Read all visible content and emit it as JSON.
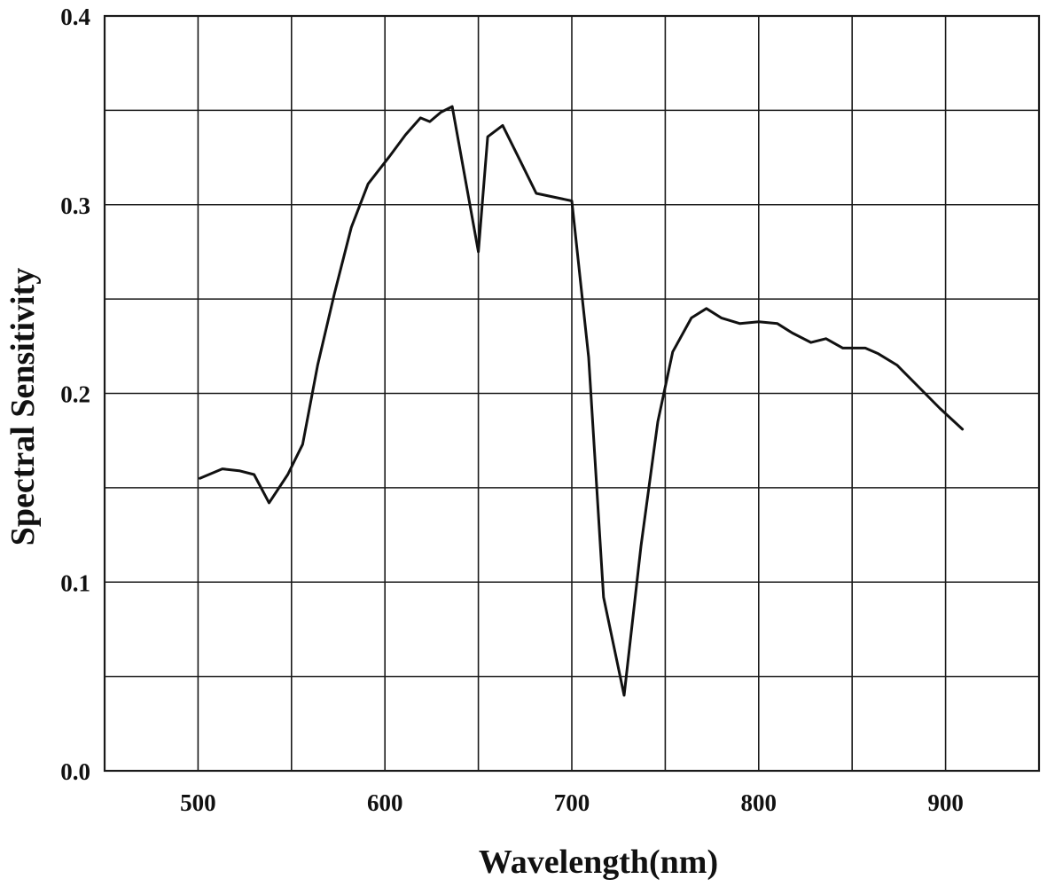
{
  "chart_data": {
    "type": "line",
    "title": "",
    "xlabel": "Wavelength(nm)",
    "ylabel": "Spectral Sensitivity",
    "xlim": [
      450,
      950
    ],
    "ylim": [
      0.0,
      0.4
    ],
    "x_ticks": [
      500,
      600,
      700,
      800,
      900
    ],
    "x_tick_labels": [
      "500",
      "600",
      "700",
      "800",
      "900"
    ],
    "y_ticks": [
      0.0,
      0.1,
      0.2,
      0.3,
      0.4
    ],
    "y_tick_labels": [
      "0.0",
      "0.1",
      "0.2",
      "0.3",
      "0.4"
    ],
    "x_grid": [
      500,
      550,
      600,
      650,
      700,
      750,
      800,
      850,
      900
    ],
    "y_grid": [
      0.05,
      0.1,
      0.15,
      0.2,
      0.25,
      0.3,
      0.35
    ],
    "grid": true,
    "legend": "none",
    "line_color": "#111111",
    "series": [
      {
        "x": [
          501,
          513,
          522,
          530,
          538,
          548,
          556,
          564,
          573,
          582,
          591,
          602,
          611,
          619,
          624,
          630,
          636,
          650,
          655,
          663,
          672,
          681,
          700,
          709,
          717,
          728,
          737,
          746,
          754,
          764,
          772,
          780,
          790,
          800,
          810,
          818,
          828,
          836,
          845,
          857,
          864,
          874,
          885,
          897,
          909
        ],
        "y": [
          0.155,
          0.16,
          0.159,
          0.157,
          0.142,
          0.157,
          0.173,
          0.215,
          0.253,
          0.288,
          0.311,
          0.325,
          0.337,
          0.346,
          0.344,
          0.349,
          0.352,
          0.275,
          0.336,
          0.342,
          0.324,
          0.306,
          0.302,
          0.219,
          0.092,
          0.04,
          0.119,
          0.185,
          0.222,
          0.24,
          0.245,
          0.24,
          0.237,
          0.238,
          0.237,
          0.232,
          0.227,
          0.229,
          0.224,
          0.224,
          0.221,
          0.215,
          0.204,
          0.192,
          0.181
        ]
      }
    ]
  }
}
